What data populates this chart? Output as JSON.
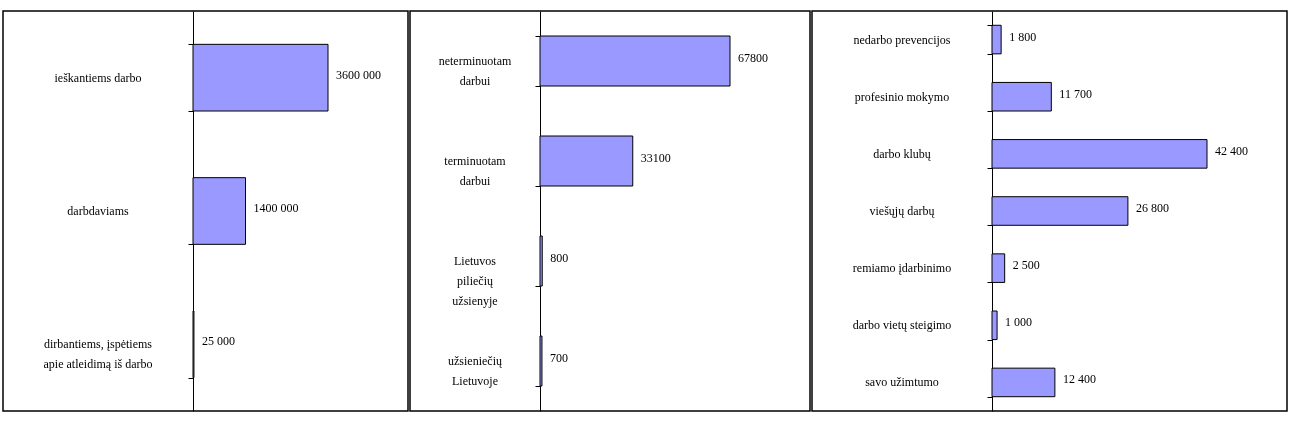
{
  "chart_data": [
    {
      "type": "bar",
      "orientation": "horizontal",
      "categories": [
        "ieškantiems darbo",
        "darbdaviams",
        "dirbantiems, įspėtiems apie atleidimą iš darbo"
      ],
      "values": [
        3600000,
        1400000,
        25000
      ],
      "value_labels": [
        "3600 000",
        "1400 000",
        "25 000"
      ],
      "color": "#9999ff",
      "grid": false,
      "legend": false,
      "tick_labels": "y"
    },
    {
      "type": "bar",
      "orientation": "horizontal",
      "categories": [
        "neterminuotam darbui",
        "terminuotam darbui",
        "Lietuvos piliečių užsienyje",
        "užsieniečių Lietuvoje"
      ],
      "values": [
        67800,
        33100,
        800,
        700
      ],
      "value_labels": [
        "67800",
        "33100",
        "800",
        "700"
      ],
      "color": "#9999ff",
      "grid": false,
      "legend": false,
      "tick_labels": "y"
    },
    {
      "type": "bar",
      "orientation": "horizontal",
      "categories": [
        "nedarbo prevencijos",
        "profesinio mokymo",
        "darbo klubų",
        "viešųjų darbų",
        "remiamo įdarbinimo",
        "darbo vietų steigimo",
        "savo užimtumo"
      ],
      "values": [
        1800,
        11700,
        42400,
        26800,
        2500,
        1000,
        12400
      ],
      "value_labels": [
        "1 800",
        "11 700",
        "42 400",
        "26 800",
        "2 500",
        "1 000",
        "12 400"
      ],
      "color": "#9999ff",
      "grid": false,
      "legend": false,
      "tick_labels": "y"
    }
  ]
}
